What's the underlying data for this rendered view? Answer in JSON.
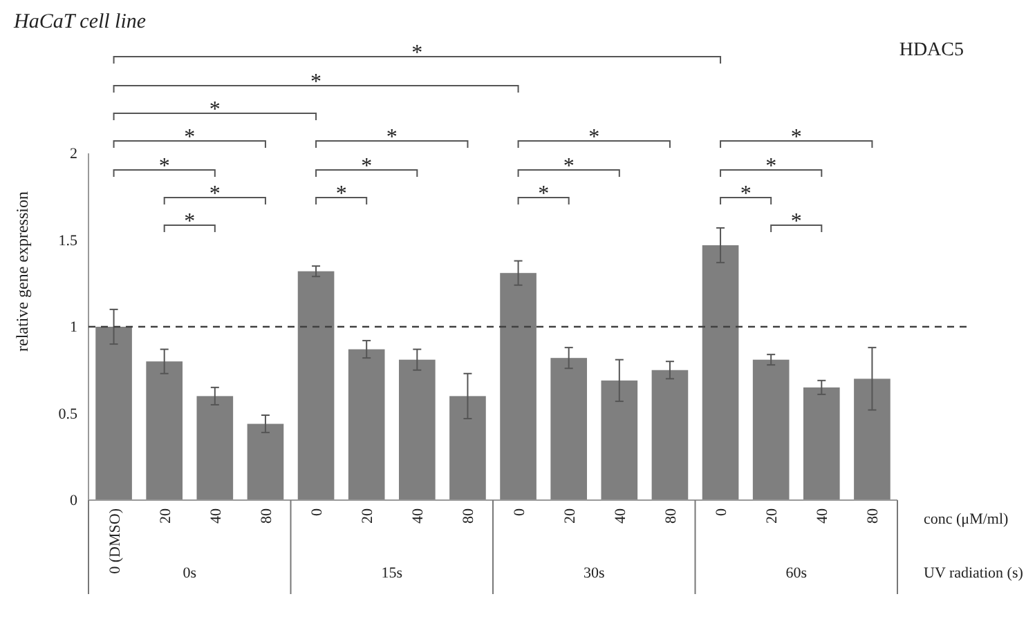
{
  "chart_data": {
    "type": "bar",
    "title": "HaCaT cell line",
    "subtitle": "HDAC5",
    "ylabel": "relative gene expression",
    "xlabel": "conc (μM/ml)",
    "categories": [
      "0 (DMSO)",
      "20",
      "40",
      "80",
      "0",
      "20",
      "40",
      "80",
      "0",
      "20",
      "40",
      "80",
      "0",
      "20",
      "40",
      "80"
    ],
    "values": [
      1.0,
      0.8,
      0.6,
      0.44,
      1.32,
      0.87,
      0.81,
      0.6,
      1.31,
      0.82,
      0.69,
      0.75,
      1.47,
      0.81,
      0.65,
      0.7
    ],
    "errors": [
      0.1,
      0.07,
      0.05,
      0.05,
      0.03,
      0.05,
      0.06,
      0.13,
      0.07,
      0.06,
      0.12,
      0.05,
      0.1,
      0.03,
      0.04,
      0.18
    ],
    "color": "#7f7f7f",
    "ylim": [
      0,
      2
    ],
    "yticks": [
      0,
      0.5,
      1,
      1.5,
      2
    ],
    "grid": false,
    "ref_lines": [
      {
        "axis": "y",
        "value": 1,
        "color": "#404040",
        "line_style": "dashed"
      }
    ],
    "annotations": [
      "*",
      "*",
      "*",
      "*",
      "*",
      "*",
      "*",
      "*",
      "*",
      "*",
      "*",
      "*",
      "*",
      "*",
      "*",
      "*",
      "*",
      "0s",
      "15s",
      "30s",
      "60s",
      "UV radiation (s)"
    ]
  }
}
